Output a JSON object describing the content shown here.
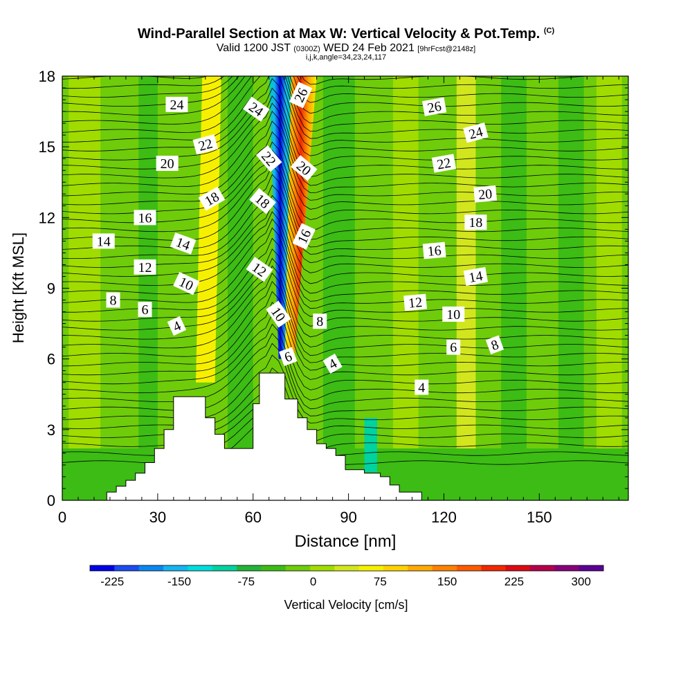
{
  "title": {
    "main": "Wind-Parallel Section at Max W: Vertical Velocity & Pot.Temp.",
    "copyright": "(C)",
    "valid_prefix": "Valid 1200 JST",
    "valid_utc": "(0300Z)",
    "valid_date": "WED 24 Feb 2021",
    "forecast": "[9hrFcst@2148z]",
    "params": "i,j,k,angle=34,23,24,117"
  },
  "chart_data": {
    "type": "contour",
    "xlabel": "Distance [nm]",
    "ylabel": "Height [Kft MSL]",
    "xlim": [
      0,
      178
    ],
    "ylim": [
      0,
      18
    ],
    "x_ticks": [
      0,
      30,
      60,
      90,
      120,
      150
    ],
    "y_ticks": [
      0,
      3,
      6,
      9,
      12,
      15,
      18
    ],
    "colorbar": {
      "label": "Vertical Velocity [cm/s]",
      "ticks": [
        -225,
        -150,
        -75,
        0,
        75,
        150,
        225,
        300
      ],
      "min": -250,
      "max": 325,
      "colors": [
        "#0000e6",
        "#1a4cf0",
        "#0b86f0",
        "#16b4f0",
        "#00dcdc",
        "#00d2a0",
        "#22b43a",
        "#3cbc14",
        "#6ecc0a",
        "#a0dc00",
        "#d2e61e",
        "#f6f000",
        "#ffd200",
        "#ffaa00",
        "#ff8200",
        "#ff5a00",
        "#f02800",
        "#dc0a14",
        "#b4004b",
        "#870078",
        "#5a0096"
      ]
    },
    "terrain_kft": [
      [
        0,
        0
      ],
      [
        14,
        0
      ],
      [
        14,
        0.35
      ],
      [
        17,
        0.35
      ],
      [
        17,
        0.6
      ],
      [
        20,
        0.6
      ],
      [
        20,
        0.85
      ],
      [
        23,
        0.85
      ],
      [
        23,
        1.15
      ],
      [
        26,
        1.15
      ],
      [
        26,
        1.6
      ],
      [
        29,
        1.6
      ],
      [
        29,
        2.2
      ],
      [
        32,
        2.2
      ],
      [
        32,
        3.0
      ],
      [
        35,
        3.0
      ],
      [
        35,
        4.4
      ],
      [
        45,
        4.4
      ],
      [
        45,
        3.5
      ],
      [
        48,
        3.5
      ],
      [
        48,
        2.8
      ],
      [
        51,
        2.8
      ],
      [
        51,
        2.2
      ],
      [
        60,
        2.2
      ],
      [
        60,
        4.1
      ],
      [
        62,
        4.1
      ],
      [
        62,
        5.4
      ],
      [
        70,
        5.4
      ],
      [
        70,
        4.3
      ],
      [
        74,
        4.3
      ],
      [
        74,
        3.5
      ],
      [
        77,
        3.5
      ],
      [
        77,
        3.0
      ],
      [
        80,
        3.0
      ],
      [
        80,
        2.4
      ],
      [
        83,
        2.4
      ],
      [
        83,
        2.2
      ],
      [
        86,
        2.2
      ],
      [
        86,
        1.9
      ],
      [
        89,
        1.9
      ],
      [
        89,
        1.3
      ],
      [
        95,
        1.3
      ],
      [
        95,
        1.15
      ],
      [
        100,
        1.15
      ],
      [
        100,
        1.0
      ],
      [
        103,
        1.0
      ],
      [
        103,
        0.65
      ],
      [
        106,
        0.65
      ],
      [
        106,
        0.35
      ],
      [
        113,
        0.35
      ],
      [
        113,
        0
      ],
      [
        178,
        0
      ]
    ],
    "theta_labels": [
      {
        "text": "24",
        "x": 36,
        "y": 16.8,
        "r": 0
      },
      {
        "text": "22",
        "x": 45,
        "y": 15.1,
        "r": -15
      },
      {
        "text": "20",
        "x": 33,
        "y": 14.3,
        "r": 0
      },
      {
        "text": "18",
        "x": 47,
        "y": 12.8,
        "r": -30
      },
      {
        "text": "16",
        "x": 26,
        "y": 12.0,
        "r": 0
      },
      {
        "text": "14",
        "x": 13,
        "y": 11.0,
        "r": 0
      },
      {
        "text": "14",
        "x": 38,
        "y": 10.9,
        "r": 20
      },
      {
        "text": "12",
        "x": 26,
        "y": 9.9,
        "r": 0
      },
      {
        "text": "10",
        "x": 39,
        "y": 9.2,
        "r": 25
      },
      {
        "text": "8",
        "x": 16,
        "y": 8.5,
        "r": 0
      },
      {
        "text": "6",
        "x": 26,
        "y": 8.1,
        "r": 0
      },
      {
        "text": "4",
        "x": 36,
        "y": 7.4,
        "r": -25
      },
      {
        "text": "24",
        "x": 61,
        "y": 16.6,
        "r": 35
      },
      {
        "text": "26",
        "x": 75,
        "y": 17.2,
        "r": -65
      },
      {
        "text": "22",
        "x": 65,
        "y": 14.5,
        "r": 50
      },
      {
        "text": "20",
        "x": 76,
        "y": 14.1,
        "r": 40
      },
      {
        "text": "18",
        "x": 63,
        "y": 12.7,
        "r": 40
      },
      {
        "text": "16",
        "x": 76,
        "y": 11.2,
        "r": -65
      },
      {
        "text": "12",
        "x": 62,
        "y": 9.8,
        "r": 35
      },
      {
        "text": "10",
        "x": 68,
        "y": 7.9,
        "r": 55
      },
      {
        "text": "8",
        "x": 81,
        "y": 7.6,
        "r": 0
      },
      {
        "text": "6",
        "x": 71,
        "y": 6.1,
        "r": -20
      },
      {
        "text": "4",
        "x": 85,
        "y": 5.8,
        "r": -30
      },
      {
        "text": "26",
        "x": 117,
        "y": 16.7,
        "r": -10
      },
      {
        "text": "24",
        "x": 130,
        "y": 15.6,
        "r": -15
      },
      {
        "text": "22",
        "x": 120,
        "y": 14.3,
        "r": -10
      },
      {
        "text": "20",
        "x": 133,
        "y": 13.0,
        "r": -5
      },
      {
        "text": "18",
        "x": 130,
        "y": 11.8,
        "r": 0
      },
      {
        "text": "16",
        "x": 117,
        "y": 10.6,
        "r": -5
      },
      {
        "text": "14",
        "x": 130,
        "y": 9.5,
        "r": -10
      },
      {
        "text": "12",
        "x": 111,
        "y": 8.4,
        "r": -5
      },
      {
        "text": "10",
        "x": 123,
        "y": 7.9,
        "r": 0
      },
      {
        "text": "6",
        "x": 123,
        "y": 6.5,
        "r": 0
      },
      {
        "text": "8",
        "x": 136,
        "y": 6.6,
        "r": -20
      },
      {
        "text": "4",
        "x": 113,
        "y": 4.8,
        "r": 0
      }
    ]
  }
}
